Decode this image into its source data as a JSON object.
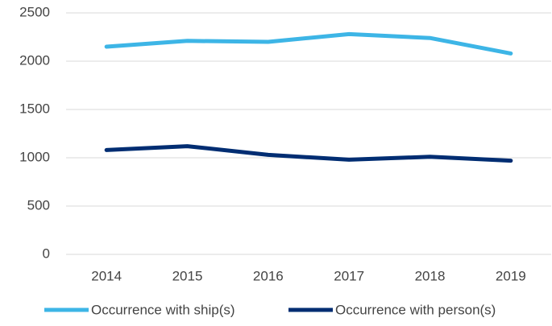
{
  "chart_data": {
    "type": "line",
    "categories": [
      "2014",
      "2015",
      "2016",
      "2017",
      "2018",
      "2019"
    ],
    "series": [
      {
        "name": "Occurrence with ship(s)",
        "color": "#3db5e6",
        "values": [
          2150,
          2210,
          2200,
          2280,
          2240,
          2080
        ]
      },
      {
        "name": "Occurrence with person(s)",
        "color": "#002d72",
        "values": [
          1080,
          1120,
          1030,
          980,
          1010,
          970
        ]
      }
    ],
    "ylim": [
      0,
      2500
    ],
    "yticks": [
      0,
      500,
      1000,
      1500,
      2000,
      2500
    ],
    "grid": true,
    "legend": "bottom"
  }
}
